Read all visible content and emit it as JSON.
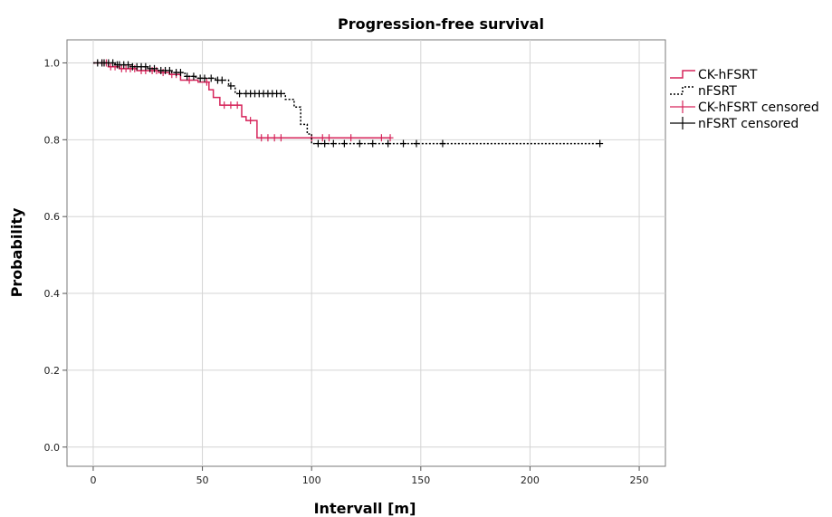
{
  "chart_data": {
    "type": "line",
    "title": "Progression-free survival",
    "xlabel": "Intervall [m]",
    "ylabel": "Probability",
    "xlim": [
      -12,
      262
    ],
    "ylim": [
      -0.05,
      1.06
    ],
    "xticks": [
      0,
      50,
      100,
      150,
      200,
      250
    ],
    "yticks": [
      0.0,
      0.2,
      0.4,
      0.6,
      0.8,
      1.0
    ],
    "xtick_labels": [
      "0",
      "50",
      "100",
      "150",
      "200",
      "250"
    ],
    "ytick_labels": [
      "0.0",
      "0.2",
      "0.4",
      "0.6",
      "0.8",
      "1.0"
    ],
    "grid": true,
    "legend_position": "top-right, outside plot",
    "legend": [
      {
        "label": "CK-hFSRT",
        "kind": "line",
        "color": "#d6245a",
        "dash": "solid"
      },
      {
        "label": "nFSRT",
        "kind": "line",
        "color": "#000000",
        "dash": "dotted"
      },
      {
        "label": "CK-hFSRT censored",
        "kind": "censor",
        "color": "#d6245a"
      },
      {
        "label": "nFSRT censored",
        "kind": "censor",
        "color": "#000000"
      }
    ],
    "series": [
      {
        "name": "CK-hFSRT",
        "color": "#d6245a",
        "dash": "solid",
        "steps": [
          [
            0,
            1.0
          ],
          [
            7,
            0.99
          ],
          [
            12,
            0.985
          ],
          [
            20,
            0.98
          ],
          [
            30,
            0.975
          ],
          [
            35,
            0.97
          ],
          [
            40,
            0.955
          ],
          [
            48,
            0.95
          ],
          [
            53,
            0.93
          ],
          [
            55,
            0.91
          ],
          [
            58,
            0.89
          ],
          [
            68,
            0.86
          ],
          [
            70,
            0.85
          ],
          [
            75,
            0.805
          ],
          [
            136,
            0.805
          ]
        ],
        "censored_x": [
          4,
          6,
          8,
          10,
          13,
          15,
          17,
          19,
          22,
          24,
          27,
          29,
          32,
          36,
          38,
          44,
          52,
          60,
          63,
          66,
          72,
          77,
          80,
          83,
          86,
          100,
          105,
          108,
          118,
          132,
          136
        ]
      },
      {
        "name": "nFSRT",
        "color": "#000000",
        "dash": "dotted",
        "steps": [
          [
            0,
            1.0
          ],
          [
            10,
            0.995
          ],
          [
            18,
            0.99
          ],
          [
            25,
            0.985
          ],
          [
            30,
            0.98
          ],
          [
            36,
            0.975
          ],
          [
            42,
            0.965
          ],
          [
            47,
            0.96
          ],
          [
            56,
            0.955
          ],
          [
            62,
            0.94
          ],
          [
            65,
            0.92
          ],
          [
            88,
            0.905
          ],
          [
            92,
            0.885
          ],
          [
            95,
            0.84
          ],
          [
            98,
            0.815
          ],
          [
            100,
            0.79
          ],
          [
            232,
            0.79
          ]
        ],
        "censored_x": [
          2,
          4,
          5,
          7,
          9,
          11,
          12,
          14,
          16,
          18,
          20,
          22,
          24,
          26,
          28,
          31,
          33,
          35,
          38,
          40,
          43,
          46,
          49,
          51,
          54,
          57,
          59,
          63,
          67,
          70,
          72,
          74,
          76,
          78,
          80,
          82,
          84,
          86,
          103,
          106,
          110,
          115,
          122,
          128,
          135,
          142,
          148,
          160,
          232
        ]
      }
    ]
  }
}
